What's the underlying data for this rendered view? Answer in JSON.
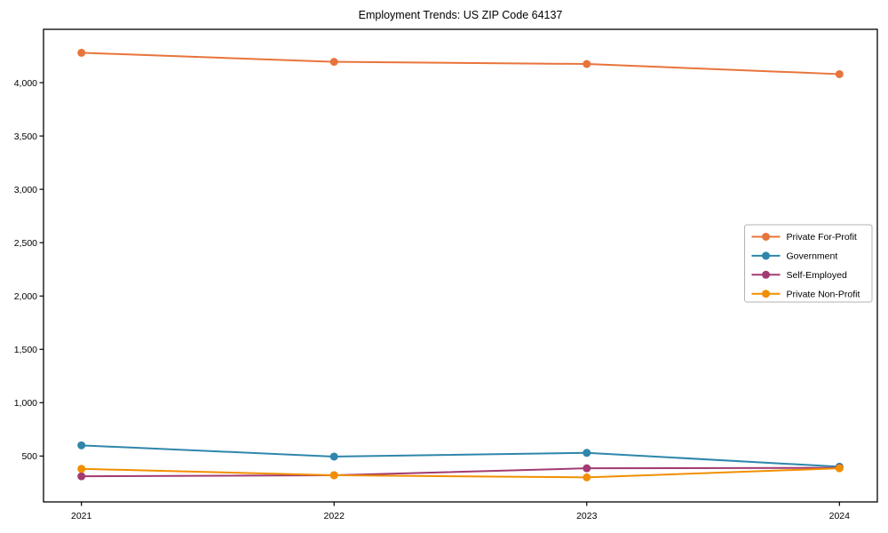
{
  "chart_data": {
    "type": "line",
    "title": "Employment Trends: US ZIP Code 64137",
    "xlabel": "",
    "ylabel": "",
    "x": [
      2021,
      2022,
      2023,
      2024
    ],
    "xtick_labels": [
      "2021",
      "2022",
      "2023",
      "2024"
    ],
    "ytick_values": [
      500,
      1000,
      1500,
      2000,
      2500,
      3000,
      3500,
      4000
    ],
    "ytick_labels": [
      "500",
      "1,000",
      "1,500",
      "2,000",
      "2,500",
      "3,000",
      "3,500",
      "4,000"
    ],
    "xlim": [
      2020.85,
      2024.15
    ],
    "ylim": [
      70,
      4500
    ],
    "grid": false,
    "legend_position": "center-right",
    "series": [
      {
        "name": "Private For-Profit",
        "color": "#e8743b",
        "values": [
          4280,
          4195,
          4175,
          4080
        ]
      },
      {
        "name": "Government",
        "color": "#2e86ab",
        "values": [
          600,
          495,
          530,
          400
        ]
      },
      {
        "name": "Self-Employed",
        "color": "#a23b72",
        "values": [
          310,
          320,
          385,
          390
        ]
      },
      {
        "name": "Private Non-Profit",
        "color": "#f18f01",
        "values": [
          380,
          320,
          300,
          385
        ]
      }
    ],
    "style": {
      "axis_color": "#000000",
      "text_color": "#000000",
      "legend_border_color": "#b3b3b3",
      "background": "#ffffff",
      "line_width": 2,
      "marker_radius": 4.5
    }
  }
}
